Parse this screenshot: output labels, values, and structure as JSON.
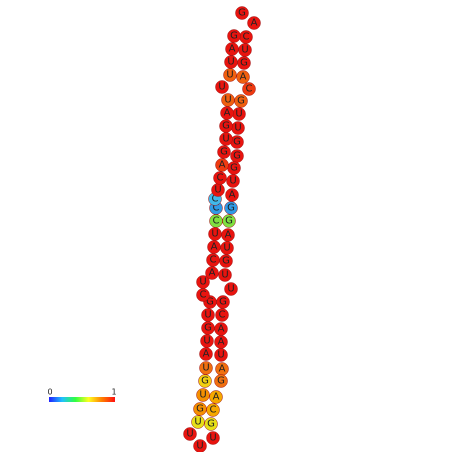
{
  "nodes": [
    {
      "label": "G",
      "color": "#e8140f"
    },
    {
      "label": "A",
      "color": "#e8140f"
    },
    {
      "label": "C",
      "color": "#e8140f"
    },
    {
      "label": "U",
      "color": "#e8140f"
    },
    {
      "label": "G",
      "color": "#e8140f"
    },
    {
      "label": "A",
      "color": "#f0600f"
    },
    {
      "label": "C",
      "color": "#ee3a10"
    },
    {
      "label": "G",
      "color": "#f0600f"
    },
    {
      "label": "U",
      "color": "#e8140f"
    },
    {
      "label": "U",
      "color": "#e8140f"
    },
    {
      "label": "G",
      "color": "#e8140f"
    },
    {
      "label": "G",
      "color": "#e8140f"
    },
    {
      "label": "G",
      "color": "#e8140f"
    },
    {
      "label": "U",
      "color": "#e8140f"
    },
    {
      "label": "A",
      "color": "#e8140f"
    },
    {
      "label": "G",
      "color": "#2f9ae6"
    },
    {
      "label": "G",
      "color": "#7fe040"
    },
    {
      "label": "A",
      "color": "#e8140f"
    },
    {
      "label": "U",
      "color": "#e8140f"
    },
    {
      "label": "G",
      "color": "#e8140f"
    },
    {
      "label": "U",
      "color": "#e8140f"
    },
    {
      "label": "U",
      "color": "#e8140f"
    },
    {
      "label": "G",
      "color": "#e8140f"
    },
    {
      "label": "C",
      "color": "#e8140f"
    },
    {
      "label": "A",
      "color": "#e8140f"
    },
    {
      "label": "A",
      "color": "#e8140f"
    },
    {
      "label": "U",
      "color": "#e8140f"
    },
    {
      "label": "A",
      "color": "#f07010"
    },
    {
      "label": "G",
      "color": "#f07010"
    },
    {
      "label": "A",
      "color": "#f5a800"
    },
    {
      "label": "C",
      "color": "#f5a800"
    },
    {
      "label": "G",
      "color": "#e6e018"
    },
    {
      "label": "U",
      "color": "#e8140f"
    },
    {
      "label": "U",
      "color": "#e8140f"
    },
    {
      "label": "U",
      "color": "#e8140f"
    },
    {
      "label": "U",
      "color": "#e6e018"
    },
    {
      "label": "G",
      "color": "#f59000"
    },
    {
      "label": "U",
      "color": "#f59000"
    },
    {
      "label": "G",
      "color": "#f2d010"
    },
    {
      "label": "U",
      "color": "#f07010"
    },
    {
      "label": "A",
      "color": "#e8140f"
    },
    {
      "label": "U",
      "color": "#e8140f"
    },
    {
      "label": "G",
      "color": "#e8140f"
    },
    {
      "label": "U",
      "color": "#e8140f"
    },
    {
      "label": "G",
      "color": "#e8140f"
    },
    {
      "label": "C",
      "color": "#e8140f"
    },
    {
      "label": "U",
      "color": "#e8140f"
    },
    {
      "label": "A",
      "color": "#e8140f"
    },
    {
      "label": "C",
      "color": "#e8140f"
    },
    {
      "label": "A",
      "color": "#e8140f"
    },
    {
      "label": "U",
      "color": "#e8140f"
    },
    {
      "label": "C",
      "color": "#7fe040"
    },
    {
      "label": "C",
      "color": "#2f9ae6"
    },
    {
      "label": "C",
      "color": "#40b8ea"
    },
    {
      "label": "U",
      "color": "#e8140f"
    },
    {
      "label": "C",
      "color": "#e8140f"
    },
    {
      "label": "A",
      "color": "#ee3a10"
    },
    {
      "label": "G",
      "color": "#e8140f"
    },
    {
      "label": "U",
      "color": "#e8140f"
    },
    {
      "label": "G",
      "color": "#e8140f"
    },
    {
      "label": "A",
      "color": "#e8140f"
    },
    {
      "label": "U",
      "color": "#f0600f"
    },
    {
      "label": "U",
      "color": "#e8140f"
    },
    {
      "label": "U",
      "color": "#f0600f"
    },
    {
      "label": "U",
      "color": "#e8140f"
    },
    {
      "label": "A",
      "color": "#e8140f"
    },
    {
      "label": "G",
      "color": "#e8140f"
    }
  ],
  "colorbar": {
    "min_label": "0",
    "max_label": "1"
  }
}
